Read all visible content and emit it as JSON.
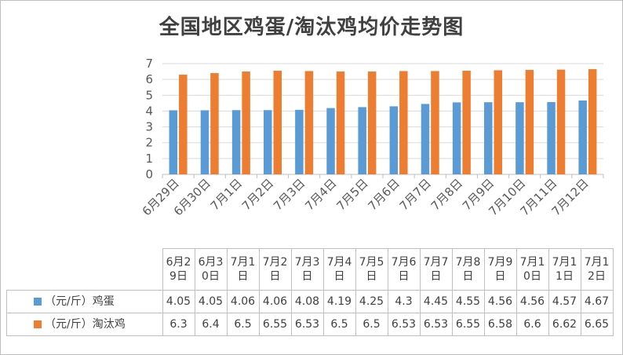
{
  "title": "全国地区鸡蛋/淘汰鸡均价走势图",
  "colors": {
    "egg": "#5b9bd5",
    "hen": "#ed7d31",
    "grid": "#d9d9d9",
    "text": "#595959"
  },
  "chart_data": {
    "type": "bar",
    "title": "全国地区鸡蛋/淘汰鸡均价走势图",
    "categories": [
      "6月29日",
      "6月30日",
      "7月1日",
      "7月2日",
      "7月3日",
      "7月4日",
      "7月5日",
      "7月6日",
      "7月7日",
      "7月8日",
      "7月9日",
      "7月10日",
      "7月11日",
      "7月12日"
    ],
    "table_headers": [
      "6月29日",
      "6月30日",
      "7月1日",
      "7月2日",
      "7月3日",
      "7月4日",
      "7月5日",
      "7月6日",
      "7月7日",
      "7月8日",
      "7月9日",
      "7月10日",
      "7月11日",
      "7月12日"
    ],
    "series": [
      {
        "name": "（元/斤）鸡蛋",
        "color": "#5b9bd5",
        "values": [
          4.05,
          4.05,
          4.06,
          4.06,
          4.08,
          4.19,
          4.25,
          4.3,
          4.45,
          4.55,
          4.56,
          4.56,
          4.57,
          4.67
        ]
      },
      {
        "name": "（元/斤）淘汰鸡",
        "color": "#ed7d31",
        "values": [
          6.3,
          6.4,
          6.5,
          6.55,
          6.53,
          6.5,
          6.5,
          6.53,
          6.53,
          6.55,
          6.58,
          6.6,
          6.62,
          6.65
        ]
      }
    ],
    "ylim": [
      0,
      7
    ],
    "yticks": [
      0,
      1,
      2,
      3,
      4,
      5,
      6,
      7
    ],
    "grid": true,
    "legend": "data-table"
  }
}
